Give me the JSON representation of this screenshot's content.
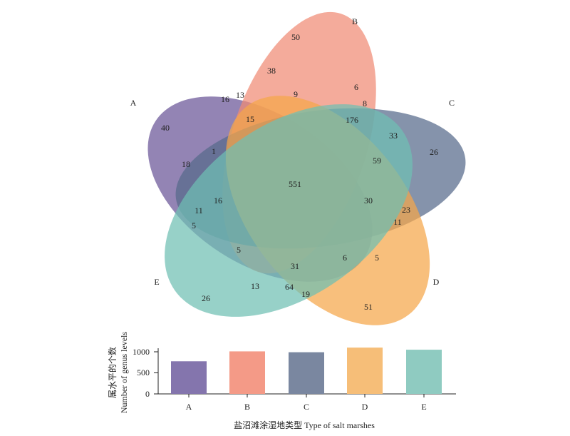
{
  "chart_data": [
    {
      "type": "venn",
      "sets": [
        {
          "name": "A",
          "color": "#6a5597"
        },
        {
          "name": "B",
          "color": "#f08a74"
        },
        {
          "name": "C",
          "color": "#56698a"
        },
        {
          "name": "D",
          "color": "#f5a64a"
        },
        {
          "name": "E",
          "color": "#6fbfb3"
        }
      ],
      "region_values": [
        "40",
        "50",
        "26",
        "51",
        "26",
        "551",
        "16",
        "13",
        "38",
        "9",
        "6",
        "8",
        "176",
        "33",
        "59",
        "15",
        "1",
        "18",
        "16",
        "11",
        "5",
        "30",
        "23",
        "11",
        "6",
        "5",
        "5",
        "31",
        "13",
        "64",
        "19"
      ]
    },
    {
      "type": "bar",
      "categories": [
        "A",
        "B",
        "C",
        "D",
        "E"
      ],
      "values": [
        775,
        1010,
        990,
        1100,
        1050
      ],
      "colors": [
        "#8475ad",
        "#f49a87",
        "#7a87a0",
        "#f6be78",
        "#8fcbc1"
      ],
      "ylim": [
        0,
        1150
      ],
      "yticks": [
        "0",
        "500",
        "1000"
      ],
      "ylabel_cn": "属水平的个数",
      "ylabel_en": "Number of genus levels",
      "xlabel": "盐沼滩涂湿地类型 Type of salt marshes"
    }
  ]
}
